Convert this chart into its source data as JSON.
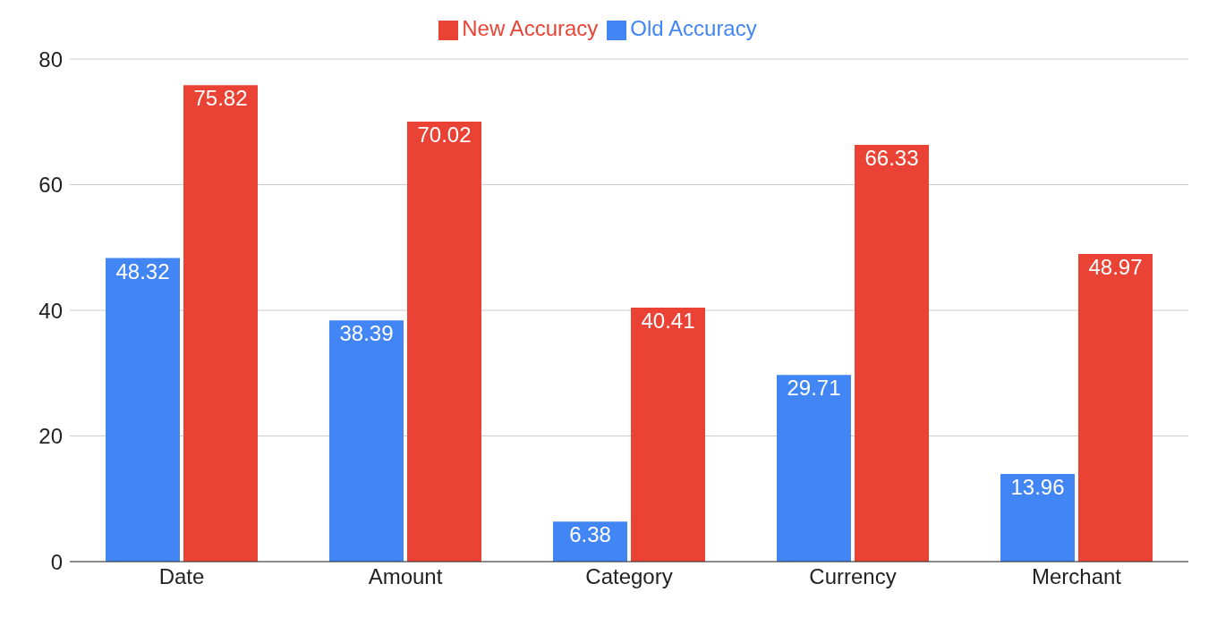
{
  "chart_data": {
    "type": "bar",
    "categories": [
      "Date",
      "Amount",
      "Category",
      "Currency",
      "Merchant"
    ],
    "series": [
      {
        "name": "Old Accuracy",
        "color": "#4285f4",
        "values": [
          48.32,
          38.39,
          6.38,
          29.71,
          13.96
        ]
      },
      {
        "name": "New Accuracy",
        "color": "#ea4335",
        "values": [
          75.82,
          70.02,
          40.41,
          66.33,
          48.97
        ]
      }
    ],
    "ylim": [
      0,
      80
    ],
    "yticks": [
      0,
      20,
      40,
      60,
      80
    ],
    "grid": "y",
    "legend": "top",
    "data_labels": true
  }
}
